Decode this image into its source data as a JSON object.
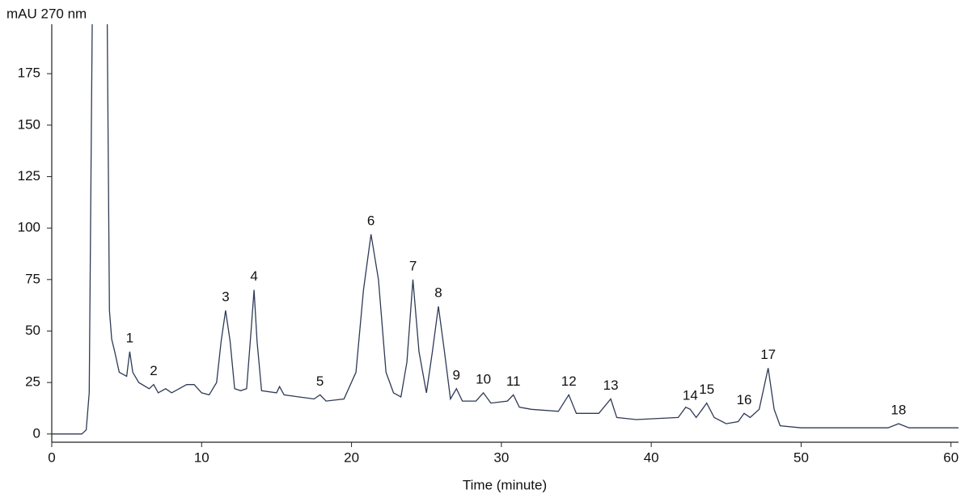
{
  "chart_data": {
    "type": "line",
    "ylabel": "mAU 270 nm",
    "xlabel": "Time (minute)",
    "xlim": [
      0,
      60.5
    ],
    "ylim": [
      -4,
      199
    ],
    "xticks": [
      0,
      10,
      20,
      30,
      40,
      50,
      60
    ],
    "yticks": [
      0,
      25,
      50,
      75,
      100,
      125,
      150,
      175
    ],
    "grid": false,
    "series": [
      {
        "color": "#2e3a55",
        "x": [
          0,
          2,
          2.3,
          2.5,
          2.7,
          3.2,
          3.7,
          3.85,
          4.0,
          4.2,
          4.5,
          5.0,
          5.2,
          5.4,
          5.8,
          6.5,
          6.8,
          7.1,
          7.6,
          8.0,
          8.5,
          9.0,
          9.5,
          10.0,
          10.5,
          11.0,
          11.3,
          11.6,
          11.9,
          12.2,
          12.6,
          13.0,
          13.3,
          13.5,
          13.7,
          14.0,
          15.0,
          15.2,
          15.5,
          16.5,
          17.5,
          17.9,
          18.3,
          19.5,
          20.3,
          20.8,
          21.3,
          21.8,
          22.3,
          22.8,
          23.3,
          23.7,
          24.1,
          24.5,
          25.0,
          25.4,
          25.8,
          26.2,
          26.6,
          27.0,
          27.4,
          28.3,
          28.8,
          29.3,
          30.4,
          30.8,
          31.2,
          32,
          33.8,
          34.5,
          35,
          36.5,
          37.3,
          37.7,
          39,
          41.8,
          42.3,
          42.6,
          43.0,
          43.4,
          43.7,
          44.2,
          45.0,
          45.8,
          46.2,
          46.6,
          47.2,
          47.8,
          48.2,
          48.6,
          50,
          52,
          54,
          55.8,
          56.5,
          57.2,
          58,
          60,
          60.5
        ],
        "values": [
          0,
          0,
          2,
          20,
          199,
          null,
          199,
          60,
          46,
          40,
          30,
          28,
          40,
          30,
          25,
          22,
          24,
          20,
          22,
          20,
          22,
          24,
          24,
          20,
          19,
          25,
          45,
          60,
          45,
          22,
          21,
          22,
          50,
          70,
          45,
          21,
          20,
          23,
          19,
          18,
          17,
          19,
          16,
          17,
          30,
          70,
          97,
          75,
          30,
          20,
          18,
          35,
          75,
          40,
          20,
          40,
          62,
          40,
          17,
          22,
          16,
          16,
          20,
          15,
          16,
          19,
          13,
          12,
          11,
          19,
          10,
          10,
          17,
          8,
          7,
          8,
          13,
          12,
          8,
          12,
          15,
          8,
          5,
          6,
          10,
          8,
          12,
          32,
          12,
          4,
          3,
          3,
          3,
          3,
          5,
          3,
          3,
          3,
          3
        ]
      }
    ],
    "annotations": [
      {
        "text": "1",
        "x": 5.2,
        "y": 40
      },
      {
        "text": "2",
        "x": 6.8,
        "y": 24
      },
      {
        "text": "3",
        "x": 11.6,
        "y": 60
      },
      {
        "text": "4",
        "x": 13.5,
        "y": 70
      },
      {
        "text": "5",
        "x": 17.9,
        "y": 19
      },
      {
        "text": "6",
        "x": 21.3,
        "y": 97
      },
      {
        "text": "7",
        "x": 24.1,
        "y": 75
      },
      {
        "text": "8",
        "x": 25.8,
        "y": 62
      },
      {
        "text": "9",
        "x": 27.0,
        "y": 22
      },
      {
        "text": "10",
        "x": 28.8,
        "y": 20
      },
      {
        "text": "11",
        "x": 30.8,
        "y": 19
      },
      {
        "text": "12",
        "x": 34.5,
        "y": 19
      },
      {
        "text": "13",
        "x": 37.3,
        "y": 17
      },
      {
        "text": "14",
        "x": 42.6,
        "y": 12
      },
      {
        "text": "15",
        "x": 43.7,
        "y": 15
      },
      {
        "text": "16",
        "x": 46.2,
        "y": 10
      },
      {
        "text": "17",
        "x": 47.8,
        "y": 32
      },
      {
        "text": "18",
        "x": 56.5,
        "y": 5
      }
    ]
  }
}
